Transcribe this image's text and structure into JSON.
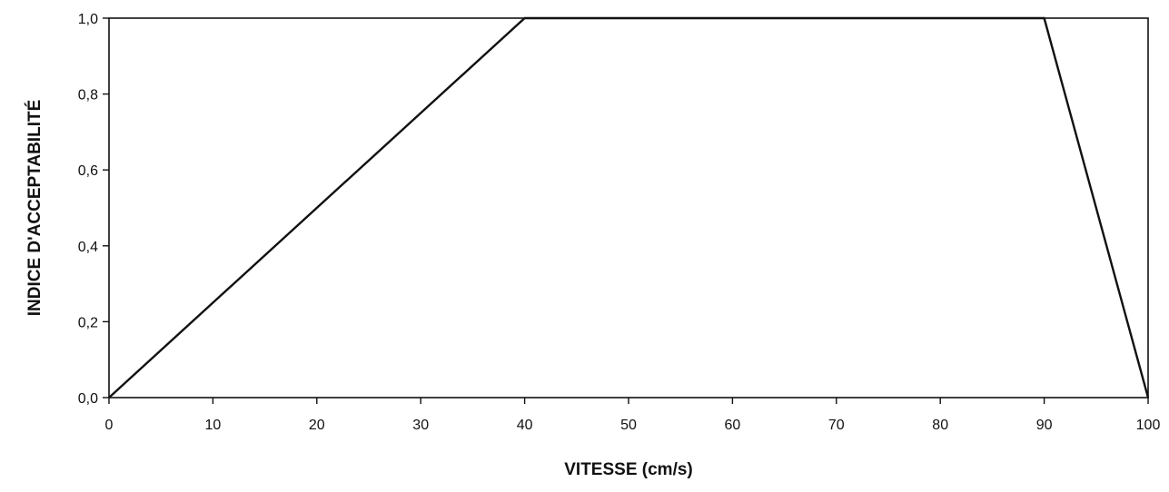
{
  "chart_data": {
    "type": "line",
    "title": "",
    "xlabel": "VITESSE (cm/s)",
    "ylabel": "INDICE D'ACCEPTABILITÉ",
    "xlim": [
      0,
      100
    ],
    "ylim": [
      0,
      1
    ],
    "x_ticks": [
      0,
      10,
      20,
      30,
      40,
      50,
      60,
      70,
      80,
      90,
      100
    ],
    "x_tick_labels": [
      "0",
      "10",
      "20",
      "30",
      "40",
      "50",
      "60",
      "70",
      "80",
      "90",
      "100"
    ],
    "y_ticks": [
      0,
      0.2,
      0.4,
      0.6,
      0.8,
      1.0
    ],
    "y_tick_labels": [
      "0,0",
      "0,2",
      "0,4",
      "0,6",
      "0,8",
      "1,0"
    ],
    "grid": false,
    "legend": "none",
    "series": [
      {
        "x": [
          0,
          40,
          90,
          100
        ],
        "y": [
          0,
          1,
          1,
          0
        ],
        "color": "#111111"
      }
    ]
  }
}
